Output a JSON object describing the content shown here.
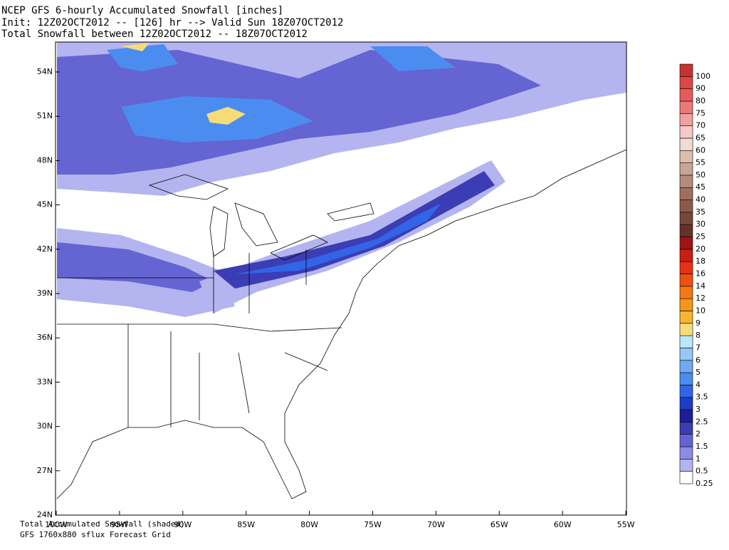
{
  "header": {
    "lines": [
      "NCEP GFS 6-hourly Accumulated Snowfall [inches]",
      "Init: 12Z02OCT2012 -- [126] hr --> Valid Sun 18Z07OCT2012",
      "Total Snowfall between 12Z02OCT2012 -- 18Z07OCT2012"
    ]
  },
  "axes": {
    "lat_labels": [
      "54N",
      "51N",
      "48N",
      "45N",
      "42N",
      "39N",
      "36N",
      "33N",
      "30N",
      "27N",
      "24N"
    ],
    "lon_labels": [
      "100W",
      "95W",
      "90W",
      "85W",
      "80W",
      "75W",
      "70W",
      "65W",
      "60W",
      "55W"
    ]
  },
  "colorbar": {
    "items": [
      {
        "label": "0.25",
        "color": "#ffffff"
      },
      {
        "label": "0.5",
        "color": "#b4b4f0"
      },
      {
        "label": "1",
        "color": "#8c8ce6"
      },
      {
        "label": "1.5",
        "color": "#6464d2"
      },
      {
        "label": "2",
        "color": "#3c3cb4"
      },
      {
        "label": "2.5",
        "color": "#1e1e96"
      },
      {
        "label": "3",
        "color": "#1e3cc8"
      },
      {
        "label": "3.5",
        "color": "#3264e6"
      },
      {
        "label": "4",
        "color": "#4b8cf0"
      },
      {
        "label": "5",
        "color": "#6eaaf0"
      },
      {
        "label": "6",
        "color": "#96c8f5"
      },
      {
        "label": "7",
        "color": "#bee6fa"
      },
      {
        "label": "8",
        "color": "#f5dc78"
      },
      {
        "label": "9",
        "color": "#f5b432"
      },
      {
        "label": "10",
        "color": "#f59614"
      },
      {
        "label": "12",
        "color": "#f57814"
      },
      {
        "label": "14",
        "color": "#f05014"
      },
      {
        "label": "16",
        "color": "#e63214"
      },
      {
        "label": "18",
        "color": "#c81e14"
      },
      {
        "label": "20",
        "color": "#a01414"
      },
      {
        "label": "25",
        "color": "#643228"
      },
      {
        "label": "30",
        "color": "#784638"
      },
      {
        "label": "35",
        "color": "#8c5a4b"
      },
      {
        "label": "40",
        "color": "#a06e5f"
      },
      {
        "label": "45",
        "color": "#b48c7d"
      },
      {
        "label": "50",
        "color": "#c8a596"
      },
      {
        "label": "55",
        "color": "#dcbeaf"
      },
      {
        "label": "60",
        "color": "#f0dcd2"
      },
      {
        "label": "65",
        "color": "#f5c8c8"
      },
      {
        "label": "70",
        "color": "#f0a0a0"
      },
      {
        "label": "75",
        "color": "#eb7878"
      },
      {
        "label": "80",
        "color": "#e65a5a"
      },
      {
        "label": "90",
        "color": "#dc4646"
      },
      {
        "label": "100",
        "color": "#c83232"
      }
    ]
  },
  "footer": {
    "lines": [
      "Total Accumulated Snowfall (shaded)",
      "GFS 1760x880 sflux Forecast Grid"
    ]
  }
}
